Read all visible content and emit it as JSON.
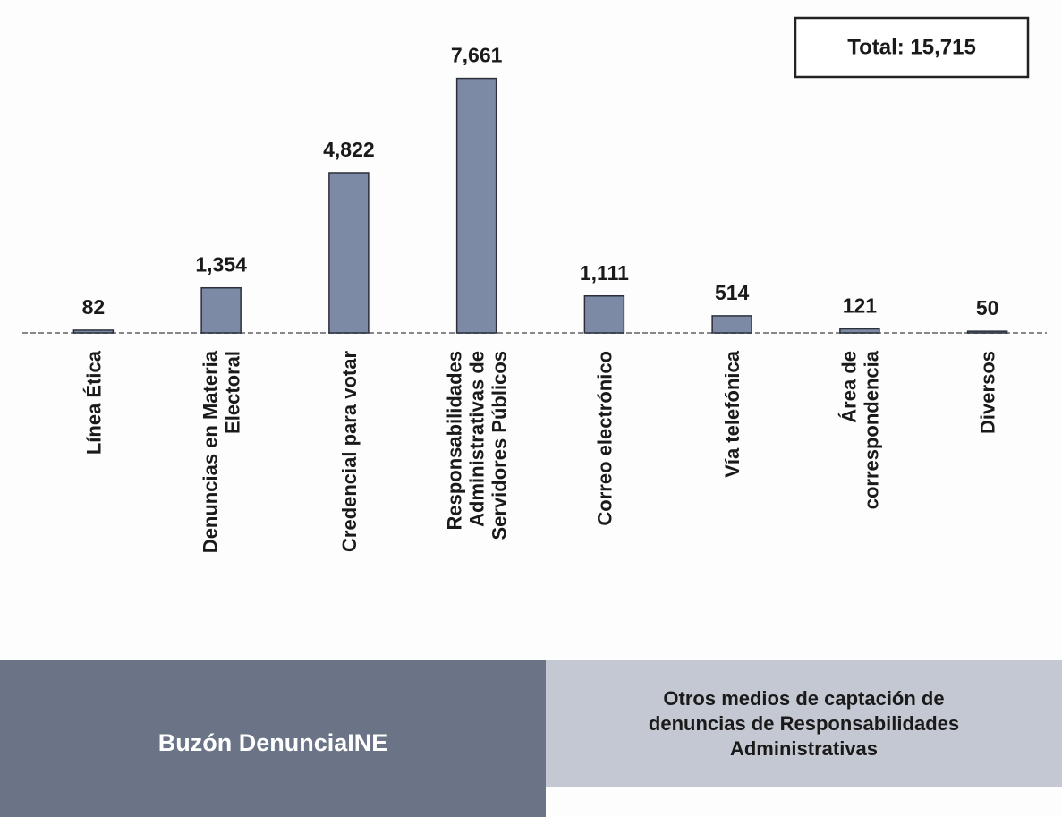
{
  "chart_data": {
    "type": "bar",
    "categories": [
      "Línea Ética",
      "Denuncias en Materia\nElectoral",
      "Credencial para votar",
      "Responsabilidades\nAdministrativas de\nServidores Públicos",
      "Correo electrónico",
      "Vía telefónica",
      "Área de\ncorrespondencia",
      "Diversos"
    ],
    "values": [
      82,
      1354,
      4822,
      7661,
      1111,
      514,
      121,
      50
    ],
    "value_labels": [
      "82",
      "1,354",
      "4,822",
      "7,661",
      "1,111",
      "514",
      "121",
      "50"
    ],
    "color": "#7d8aa6",
    "ylim": [
      0,
      8000
    ],
    "annotations": {
      "total": "Total: 15,715"
    },
    "groups": [
      {
        "label": "Buzón DenunciaINE",
        "color": "#6b7487"
      },
      {
        "label": "Otros medios de captación de\ndenuncias de Responsabilidades\nAdministrativas",
        "color": "#c3c8d2"
      }
    ]
  }
}
